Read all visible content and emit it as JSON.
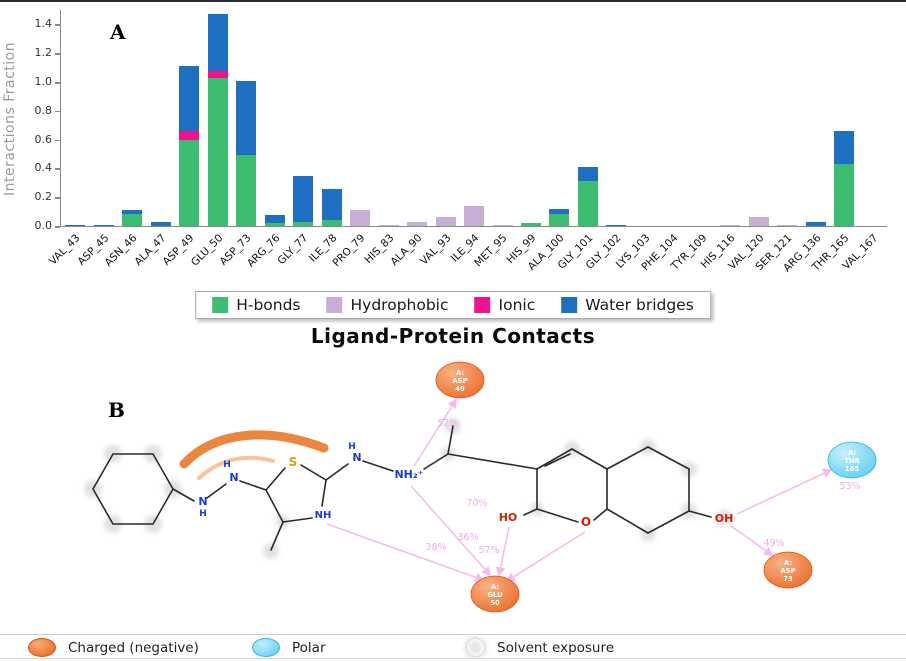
{
  "panel_a": {
    "label": "A",
    "ylabel": "Interactions Fraction"
  },
  "chart_data": {
    "type": "bar",
    "stacked": true,
    "title": "",
    "xlabel": "",
    "ylabel": "Interactions Fraction",
    "ylim": [
      0,
      1.5
    ],
    "yticks": [
      "0.0",
      "0.2",
      "0.4",
      "0.6",
      "0.8",
      "1.0",
      "1.2",
      "1.4"
    ],
    "grid": false,
    "legend_position": "below",
    "categories": [
      "VAL_43",
      "ASP_45",
      "ASN_46",
      "ALA_47",
      "ASP_49",
      "GLU_50",
      "ASP_73",
      "ARG_76",
      "GLY_77",
      "ILE_78",
      "PRO_79",
      "HIS_83",
      "ALA_90",
      "VAL_93",
      "ILE_94",
      "MET_95",
      "HIS_99",
      "ALA_100",
      "GLY_101",
      "GLY_102",
      "LYS_103",
      "PHE_104",
      "TYR_109",
      "HIS_116",
      "VAL_120",
      "SER_121",
      "ARG_136",
      "THR_165",
      "VAL_167"
    ],
    "series": [
      {
        "name": "H-bonds",
        "color": "#3dbd71",
        "values": [
          0,
          0,
          0.08,
          0,
          0.6,
          1.03,
          0.49,
          0.02,
          0.03,
          0.04,
          0,
          0,
          0,
          0,
          0,
          0,
          0.02,
          0.08,
          0.31,
          0,
          0,
          0,
          0,
          0,
          0,
          0,
          0,
          0.43,
          0
        ]
      },
      {
        "name": "Hydrophobic",
        "color": "#c7aed6",
        "values": [
          0,
          0,
          0,
          0,
          0,
          0,
          0,
          0,
          0,
          0,
          0.11,
          0.01,
          0.03,
          0.06,
          0.14,
          0.01,
          0,
          0,
          0,
          0,
          0,
          0,
          0,
          0.01,
          0.06,
          0.01,
          0,
          0,
          0
        ]
      },
      {
        "name": "Ionic",
        "color": "#f0148c",
        "values": [
          0,
          0,
          0,
          0,
          0.06,
          0.05,
          0,
          0,
          0,
          0,
          0,
          0,
          0,
          0,
          0,
          0,
          0,
          0,
          0,
          0,
          0,
          0,
          0,
          0,
          0,
          0,
          0,
          0,
          0
        ]
      },
      {
        "name": "Water bridges",
        "color": "#1e6fc2",
        "values": [
          0.01,
          0.01,
          0.03,
          0.03,
          0.45,
          0.39,
          0.52,
          0.06,
          0.32,
          0.22,
          0,
          0,
          0,
          0,
          0,
          0,
          0,
          0.04,
          0.1,
          0.01,
          0,
          0,
          0,
          0,
          0,
          0,
          0.03,
          0.23,
          0
        ]
      }
    ]
  },
  "panel_b": {
    "label": "B",
    "title": "Ligand-Protein Contacts",
    "residues": [
      {
        "chain": "A:",
        "name": "ASP",
        "num": "49",
        "type": "charged-negative"
      },
      {
        "chain": "A:",
        "name": "THR",
        "num": "165",
        "type": "polar"
      },
      {
        "chain": "A:",
        "name": "GLU",
        "num": "50",
        "type": "charged-negative"
      },
      {
        "chain": "A:",
        "name": "ASP",
        "num": "73",
        "type": "charged-negative"
      }
    ],
    "contacts": {
      "asp49": "52%",
      "glu50_ho": "70%",
      "glu50_nplus": "36%",
      "glu50_nh": "38%",
      "glu50_o": "57%",
      "thr165": "53%",
      "asp73": "49%"
    },
    "atoms": {
      "n1": "N",
      "h1": "H",
      "n2": "N",
      "h2": "H",
      "s": "S",
      "nh_ring": "NH",
      "n4": "N",
      "h4": "H",
      "nh2": "NH₂⁺",
      "o": "O",
      "ho": "HO",
      "oh": "OH"
    }
  },
  "legend_b": {
    "items": [
      {
        "label": "Charged (negative)",
        "type": "charged-negative"
      },
      {
        "label": "Polar",
        "type": "polar"
      },
      {
        "label": "Solvent exposure",
        "type": "solvent"
      }
    ]
  },
  "colors": {
    "charged_negative": "#e8611d",
    "polar": "#55cdf1",
    "arrow_pink": "#f2b5ec"
  }
}
